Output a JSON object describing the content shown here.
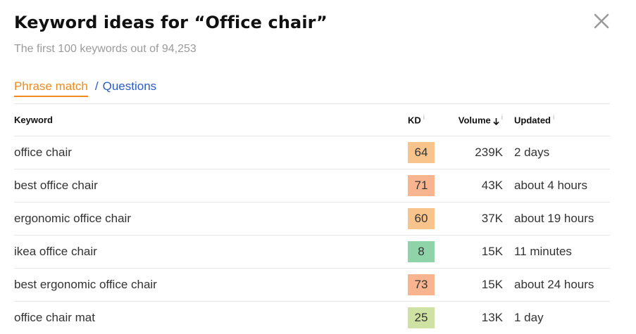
{
  "header": {
    "title": "Keyword ideas for “Office chair”",
    "subtitle": "The first 100 keywords out of 94,253",
    "close_icon": "close-icon"
  },
  "tabs": {
    "active": "Phrase match",
    "separator": "/",
    "other": "Questions"
  },
  "table": {
    "columns": {
      "keyword": "Keyword",
      "kd": "KD",
      "kd_info": "i",
      "volume": "Volume",
      "volume_sort": "sort-descending-icon",
      "updated": "Updated",
      "updated_info": "i"
    },
    "rows": [
      {
        "keyword": "office chair",
        "kd": "64",
        "kd_color": "#f9c48b",
        "volume": "239K",
        "updated": "2 days"
      },
      {
        "keyword": "best office chair",
        "kd": "71",
        "kd_color": "#f8b48f",
        "volume": "43K",
        "updated": "about 4 hours"
      },
      {
        "keyword": "ergonomic office chair",
        "kd": "60",
        "kd_color": "#f9c48b",
        "volume": "37K",
        "updated": "about 19 hours"
      },
      {
        "keyword": "ikea office chair",
        "kd": "8",
        "kd_color": "#8fd3a8",
        "volume": "15K",
        "updated": "11 minutes"
      },
      {
        "keyword": "best ergonomic office chair",
        "kd": "73",
        "kd_color": "#f8b48f",
        "volume": "15K",
        "updated": "about 24 hours"
      },
      {
        "keyword": "office chair mat",
        "kd": "25",
        "kd_color": "#cfe2a3",
        "volume": "13K",
        "updated": "1 day"
      }
    ]
  }
}
